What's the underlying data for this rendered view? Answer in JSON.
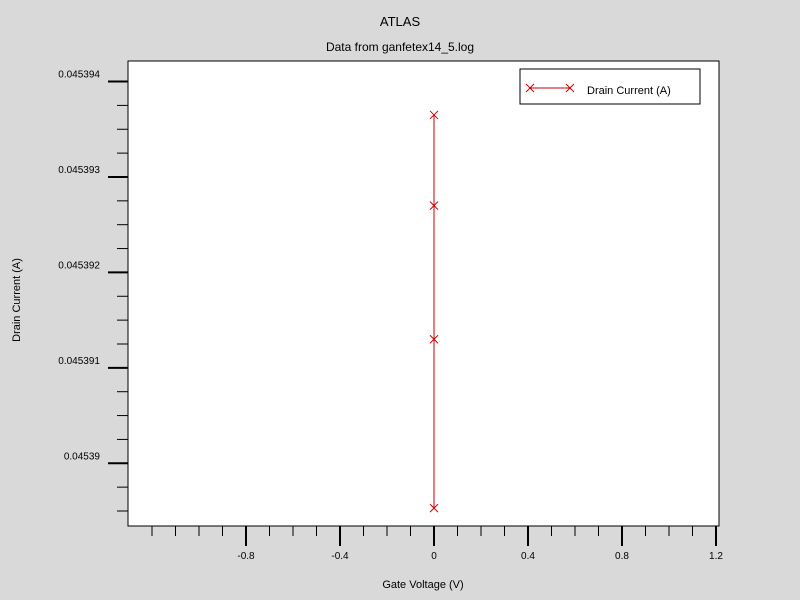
{
  "chart_data": {
    "type": "line",
    "title": "ATLAS",
    "subtitle": "Data from ganfetex14_5.log",
    "xlabel": "Gate Voltage (V)",
    "ylabel": "Drain Current (A)",
    "xlim": [
      -1.2,
      1.2
    ],
    "ylim": [
      0.0453895,
      0.0453941
    ],
    "x_ticks": [
      -0.8,
      -0.4,
      0,
      0.4,
      0.8,
      1.2
    ],
    "x_tick_labels": [
      "-0.8",
      "-0.4",
      "0",
      "0.4",
      "0.8",
      "1.2"
    ],
    "x_minor_step": 0.1,
    "y_ticks": [
      0.04539,
      0.045391,
      0.045392,
      0.045393,
      0.045394
    ],
    "y_tick_labels": [
      "0.04539",
      "0.045391",
      "0.045392",
      "0.045393",
      "0.045394"
    ],
    "y_minor_step": 2.5e-07,
    "grid": false,
    "legend_position": "top-right",
    "series": [
      {
        "name": "Drain Current (A)",
        "color": "#cc0000",
        "marker": "x",
        "x": [
          0,
          0,
          0,
          0
        ],
        "y": [
          0.04538953,
          0.0453913,
          0.0453927,
          0.04539365
        ]
      }
    ]
  }
}
